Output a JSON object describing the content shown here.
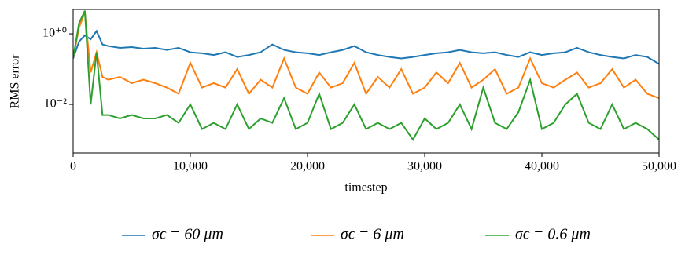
{
  "chart_data": {
    "type": "line",
    "xlabel": "timestep",
    "ylabel": "RMS error",
    "yscale": "log",
    "grid": false,
    "legend": "bottom",
    "x": [
      0,
      500,
      1000,
      1500,
      2000,
      2500,
      3000,
      4000,
      5000,
      6000,
      7000,
      8000,
      9000,
      10000,
      11000,
      12000,
      13000,
      14000,
      15000,
      16000,
      17000,
      18000,
      19000,
      20000,
      21000,
      22000,
      23000,
      24000,
      25000,
      26000,
      27000,
      28000,
      29000,
      30000,
      31000,
      32000,
      33000,
      34000,
      35000,
      36000,
      37000,
      38000,
      39000,
      40000,
      41000,
      42000,
      43000,
      44000,
      45000,
      46000,
      47000,
      48000,
      49000,
      50000
    ],
    "series": [
      {
        "name": "σϵ = 60 μm",
        "color": "#1f77b4",
        "values": [
          0.2,
          0.6,
          0.9,
          0.7,
          1.2,
          0.5,
          0.45,
          0.4,
          0.42,
          0.38,
          0.4,
          0.35,
          0.4,
          0.3,
          0.28,
          0.25,
          0.3,
          0.22,
          0.25,
          0.3,
          0.5,
          0.35,
          0.3,
          0.28,
          0.25,
          0.3,
          0.35,
          0.45,
          0.3,
          0.25,
          0.22,
          0.2,
          0.22,
          0.25,
          0.28,
          0.3,
          0.35,
          0.3,
          0.28,
          0.3,
          0.25,
          0.22,
          0.3,
          0.25,
          0.28,
          0.3,
          0.4,
          0.3,
          0.25,
          0.22,
          0.2,
          0.25,
          0.22,
          0.14
        ]
      },
      {
        "name": "σϵ = 6 μm",
        "color": "#ff7f0e",
        "values": [
          0.2,
          1.5,
          4,
          0.08,
          0.3,
          0.06,
          0.05,
          0.06,
          0.04,
          0.05,
          0.04,
          0.03,
          0.02,
          0.15,
          0.03,
          0.04,
          0.03,
          0.1,
          0.02,
          0.05,
          0.03,
          0.2,
          0.03,
          0.02,
          0.08,
          0.03,
          0.04,
          0.15,
          0.02,
          0.06,
          0.03,
          0.1,
          0.02,
          0.03,
          0.08,
          0.04,
          0.15,
          0.03,
          0.05,
          0.1,
          0.02,
          0.03,
          0.2,
          0.04,
          0.03,
          0.05,
          0.08,
          0.03,
          0.04,
          0.1,
          0.03,
          0.05,
          0.02,
          0.015
        ]
      },
      {
        "name": "σϵ = 0.6 μm",
        "color": "#2ca02c",
        "values": [
          0.2,
          2,
          4.5,
          0.01,
          0.3,
          0.005,
          0.005,
          0.004,
          0.005,
          0.004,
          0.004,
          0.005,
          0.003,
          0.01,
          0.002,
          0.003,
          0.002,
          0.01,
          0.002,
          0.004,
          0.003,
          0.015,
          0.002,
          0.003,
          0.02,
          0.002,
          0.003,
          0.01,
          0.002,
          0.003,
          0.002,
          0.003,
          0.001,
          0.004,
          0.002,
          0.003,
          0.01,
          0.002,
          0.03,
          0.003,
          0.002,
          0.006,
          0.05,
          0.002,
          0.003,
          0.01,
          0.02,
          0.003,
          0.002,
          0.01,
          0.002,
          0.003,
          0.002,
          0.001
        ]
      }
    ],
    "xlim": [
      0,
      50000
    ],
    "ylim": [
      0.00042,
      4.9
    ],
    "xticks": [
      0,
      {
        "value": 10000,
        "label": "10,000"
      },
      {
        "value": 20000,
        "label": "20,000"
      },
      {
        "value": 30000,
        "label": "30,000"
      },
      {
        "value": 40000,
        "label": "40,000"
      },
      {
        "value": 50000,
        "label": "50,000"
      }
    ],
    "yticks": [
      {
        "value": 1,
        "label": "10⁺⁰"
      },
      {
        "value": 0.01,
        "label": "10⁻²"
      }
    ]
  }
}
